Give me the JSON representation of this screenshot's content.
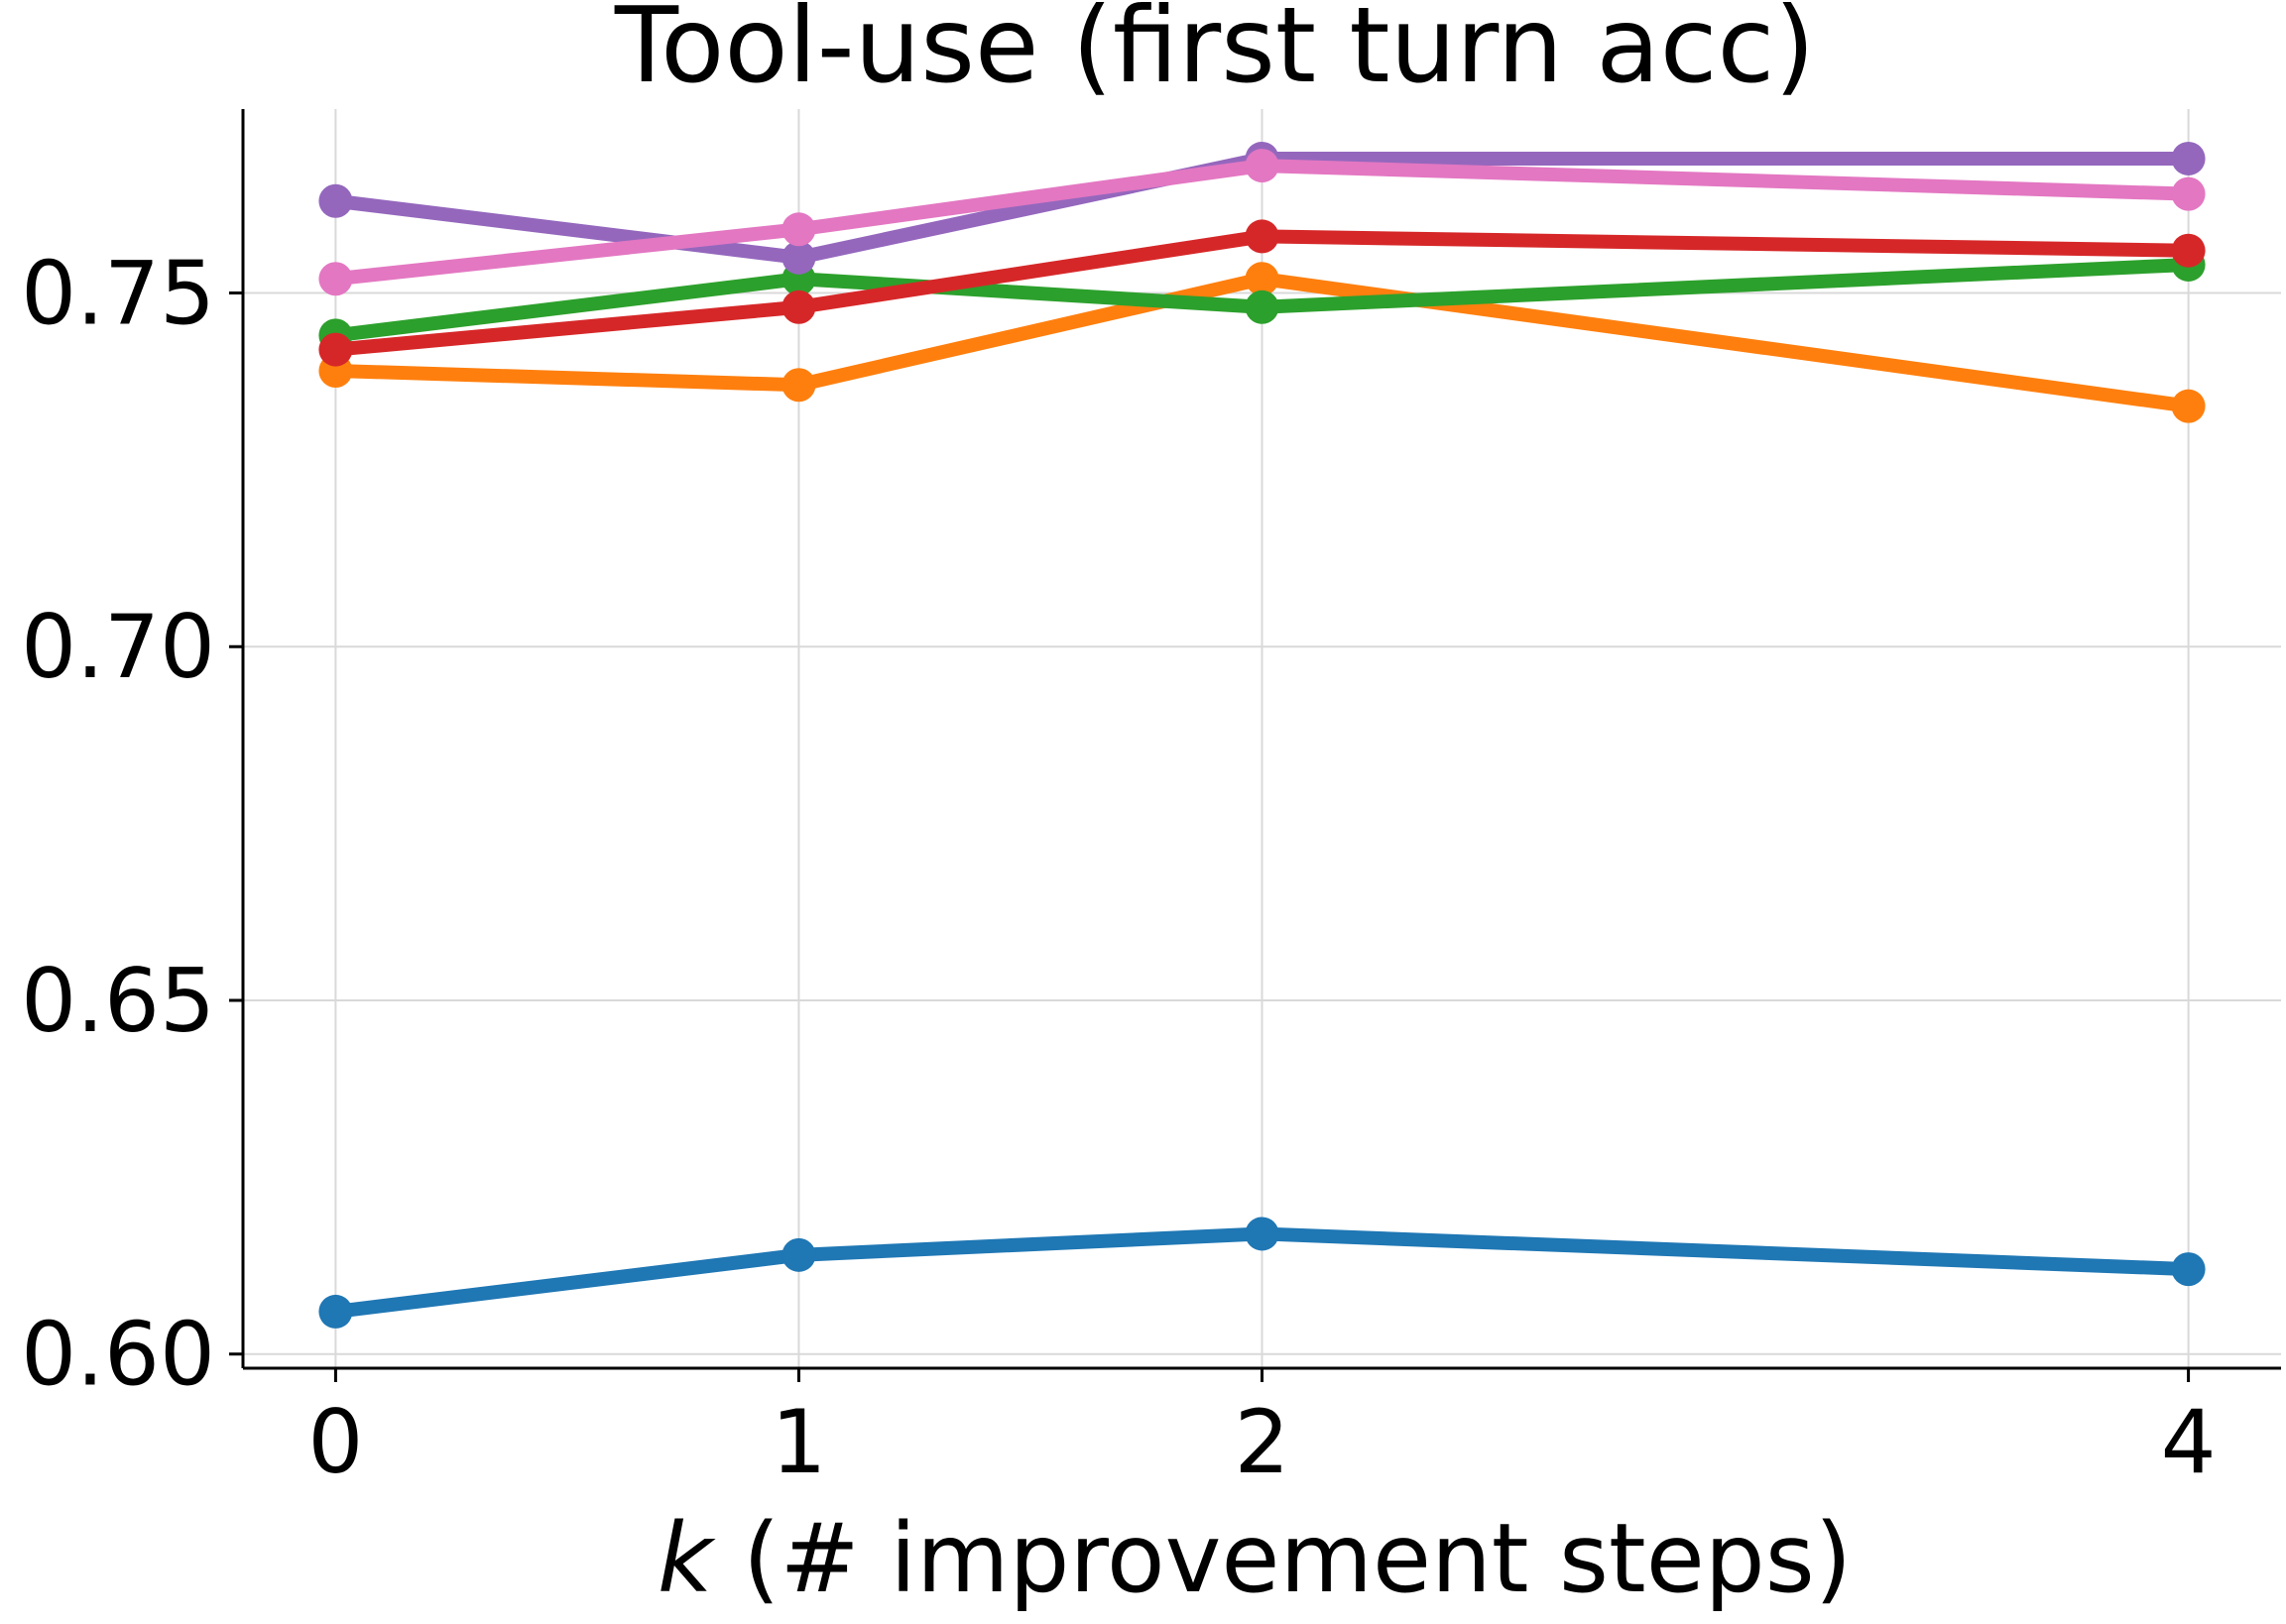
{
  "chart_data": {
    "type": "line",
    "title": "Tool-use (first turn acc)",
    "xlabel_prefix": "k",
    "xlabel_rest": " (# improvement steps)",
    "ylabel": "",
    "x": [
      0,
      1,
      2,
      4
    ],
    "x_tick_labels": [
      "0",
      "1",
      "2",
      "4"
    ],
    "y_ticks": [
      0.6,
      0.65,
      0.7,
      0.75
    ],
    "y_tick_labels": [
      "0.60",
      "0.65",
      "0.70",
      "0.75"
    ],
    "xlim": [
      -0.2,
      4.2
    ],
    "ylim": [
      0.598,
      0.776
    ],
    "grid": true,
    "series": [
      {
        "color": "#1f77b4",
        "values": [
          0.606,
          0.614,
          0.617,
          0.612
        ]
      },
      {
        "color": "#ff7f0e",
        "values": [
          0.739,
          0.737,
          0.752,
          0.734
        ]
      },
      {
        "color": "#2ca02c",
        "values": [
          0.744,
          0.752,
          0.748,
          0.754
        ]
      },
      {
        "color": "#d62728",
        "values": [
          0.742,
          0.748,
          0.758,
          0.756
        ]
      },
      {
        "color": "#9467bd",
        "values": [
          0.763,
          0.755,
          0.769,
          0.769
        ]
      },
      {
        "color": "#e377c2",
        "values": [
          0.752,
          0.759,
          0.768,
          0.764
        ]
      }
    ]
  }
}
